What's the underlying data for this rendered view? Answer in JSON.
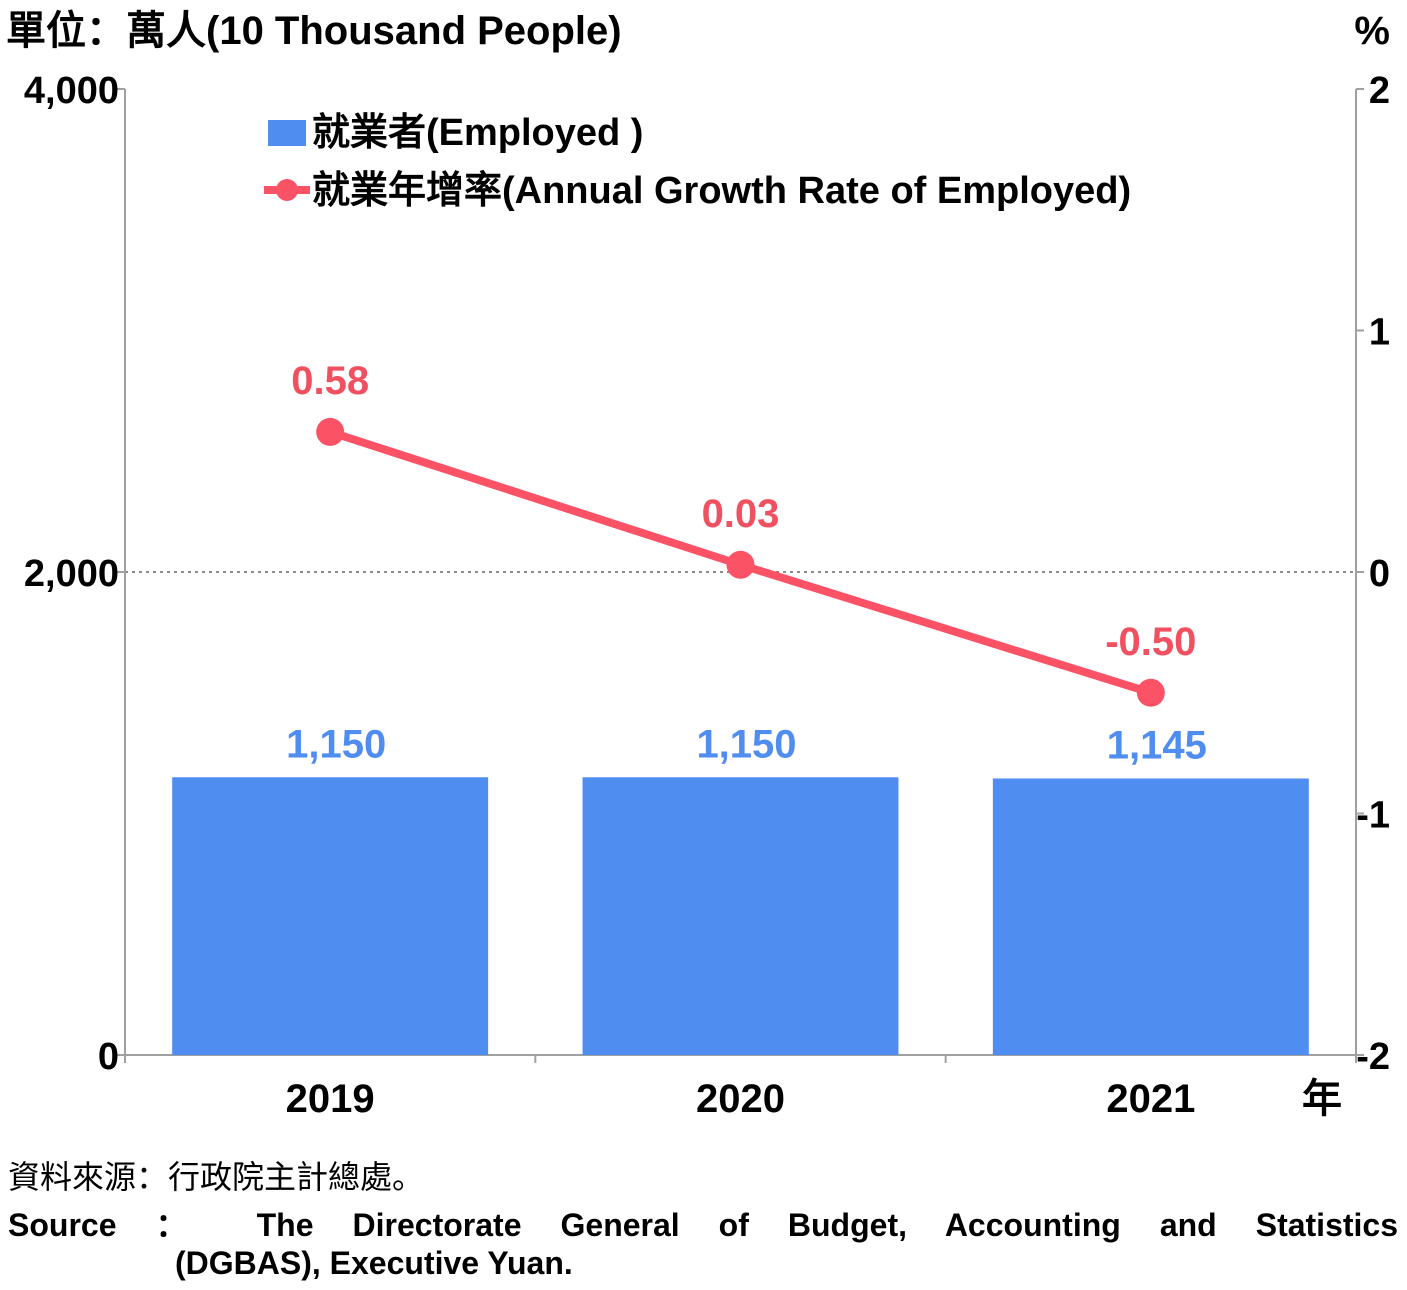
{
  "chart_data": {
    "type": "bar+line",
    "left_unit_label": "單位：萬人(10 Thousand People)",
    "right_unit_label": "%",
    "x_unit_label": "年",
    "categories": [
      "2019",
      "2020",
      "2021"
    ],
    "left_axis": {
      "min": 0,
      "max": 4000,
      "ticks": [
        "0",
        "2,000",
        "4,000"
      ],
      "tick_values": [
        0,
        2000,
        4000
      ]
    },
    "right_axis": {
      "min": -2,
      "max": 2,
      "ticks": [
        "-2",
        "-1",
        "0",
        "1",
        "2"
      ],
      "tick_values": [
        -2,
        -1,
        0,
        1,
        2
      ]
    },
    "zero_reference_line": true,
    "legend_position": "top-left",
    "series": [
      {
        "name": "就業者(Employed )",
        "kind": "bar",
        "axis": "left",
        "color": "#4f8df0",
        "values": [
          1150,
          1150,
          1145
        ],
        "labels": [
          "1,150",
          "1,150",
          "1,145"
        ],
        "label_color": "#4f8df0"
      },
      {
        "name": "就業年增率(Annual Growth Rate of Employed)",
        "kind": "line",
        "axis": "right",
        "color": "#fb5266",
        "values": [
          0.58,
          0.03,
          -0.5
        ],
        "labels": [
          "0.58",
          "0.03",
          "-0.50"
        ],
        "label_color": "#f0505f"
      }
    ]
  },
  "source": {
    "zh": "資料來源：行政院主計總處。",
    "en_line1": "Source ： The Directorate General of Budget, Accounting and Statistics",
    "en_line2": "(DGBAS), Executive Yuan."
  }
}
